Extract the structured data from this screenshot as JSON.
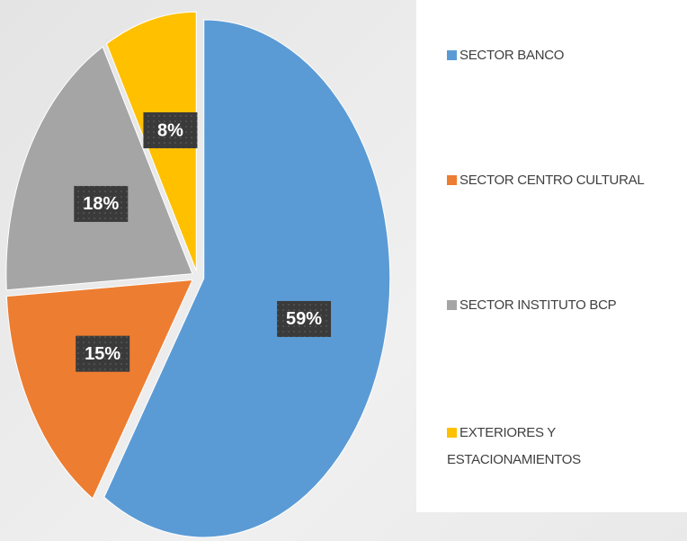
{
  "chart_data": {
    "type": "pie",
    "categories": [
      "SECTOR BANCO",
      "SECTOR CENTRO CULTURAL",
      "SECTOR INSTITUTO BCP",
      "EXTERIORES Y ESTACIONAMIENTOS"
    ],
    "values": [
      59,
      15,
      18,
      8
    ],
    "value_labels": [
      "59%",
      "15%",
      "18%",
      "8%"
    ],
    "colors": [
      "#5b9bd5",
      "#ed7d31",
      "#a5a5a5",
      "#ffc000"
    ],
    "legend": "right"
  }
}
